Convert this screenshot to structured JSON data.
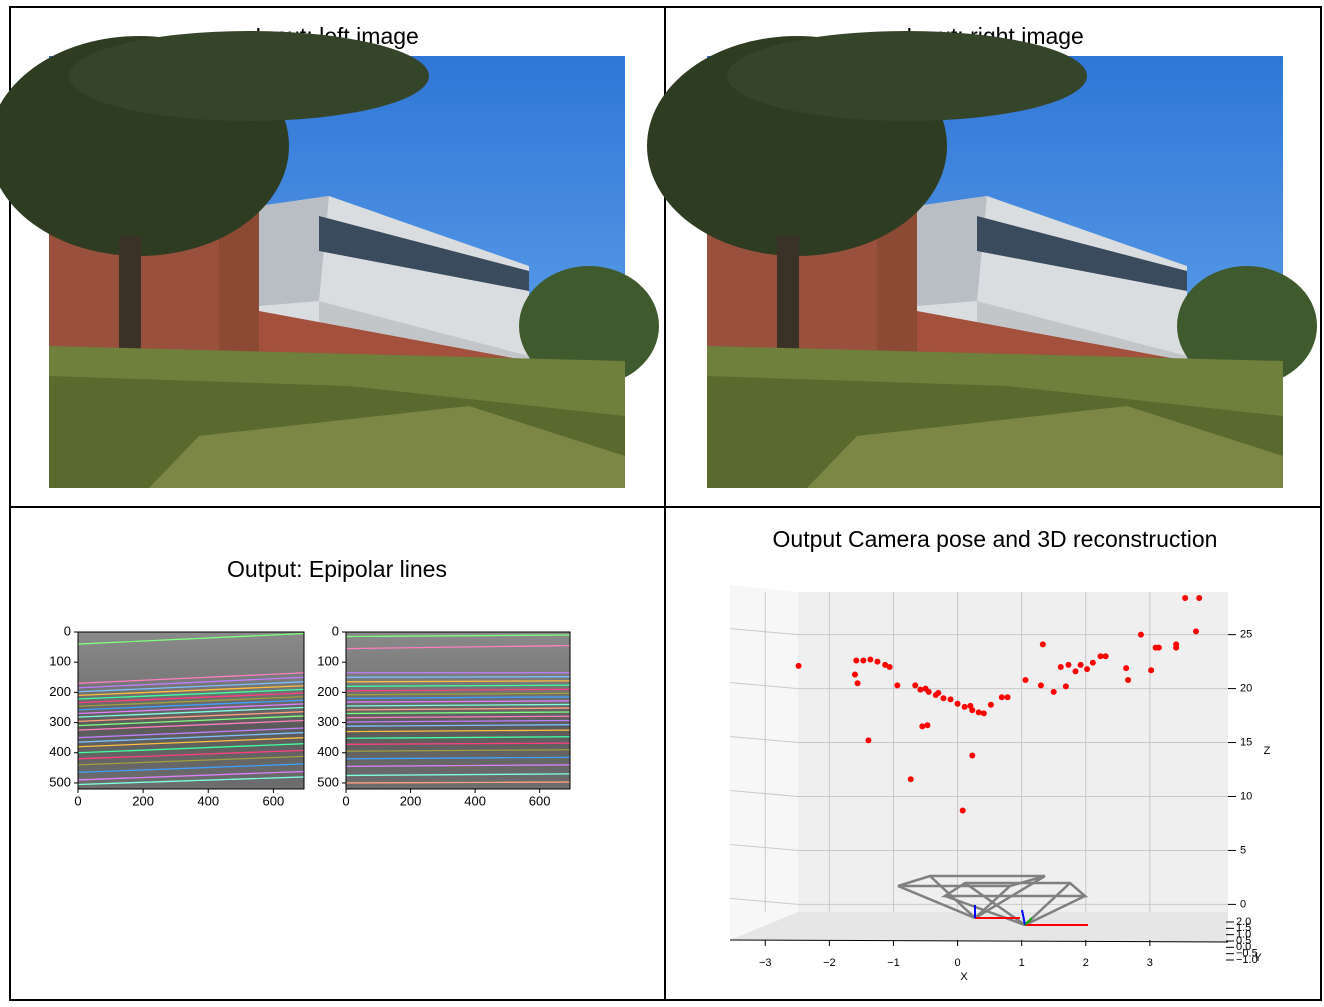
{
  "panels": [
    {
      "title": "Input: left image"
    },
    {
      "title": "Input: right image"
    },
    {
      "title": "Output: Epipolar lines",
      "plots": [
        {
          "type": "line",
          "xlim": [
            0,
            694
          ],
          "ylim": [
            520,
            0
          ],
          "xticks": [
            0,
            200,
            400,
            600
          ],
          "yticks": [
            0,
            100,
            200,
            300,
            400,
            500
          ],
          "colors": [
            "#7fff7f",
            "#ff7fbf",
            "#bf7fff",
            "#7fbfff",
            "#ffbf3f",
            "#3fff9f",
            "#ff3f7f",
            "#9f9f3f",
            "#3f9fff",
            "#df7fff",
            "#7fffdf",
            "#ff9f7f"
          ],
          "y_start": [
            40,
            170,
            185,
            198,
            210,
            222,
            234,
            246,
            258,
            270,
            282,
            296,
            310,
            325,
            350,
            365,
            380,
            400,
            420,
            440,
            465,
            490,
            505
          ],
          "y_end": [
            5,
            135,
            150,
            165,
            178,
            190,
            202,
            214,
            226,
            238,
            250,
            264,
            278,
            293,
            318,
            333,
            350,
            370,
            392,
            412,
            437,
            462,
            480
          ]
        },
        {
          "type": "line",
          "xlim": [
            0,
            694
          ],
          "ylim": [
            520,
            0
          ],
          "xticks": [
            0,
            200,
            400,
            600
          ],
          "yticks": [
            0,
            100,
            200,
            300,
            400,
            500
          ],
          "colors": [
            "#7fff7f",
            "#ff7fbf",
            "#bf7fff",
            "#7fbfff",
            "#ffbf3f",
            "#3fff9f",
            "#ff3f7f",
            "#9f9f3f",
            "#3f9fff",
            "#df7fff",
            "#7fffdf",
            "#ff9f7f"
          ],
          "y_start": [
            15,
            55,
            135,
            150,
            165,
            180,
            195,
            208,
            220,
            232,
            245,
            258,
            270,
            284,
            298,
            312,
            330,
            352,
            372,
            395,
            420,
            445,
            475,
            500
          ],
          "y_end": [
            10,
            45,
            135,
            148,
            162,
            176,
            190,
            203,
            215,
            228,
            240,
            252,
            265,
            279,
            293,
            307,
            325,
            347,
            368,
            390,
            415,
            440,
            470,
            497
          ]
        }
      ]
    },
    {
      "title": "Output Camera pose and 3D reconstruction",
      "chart": {
        "type": "scatter3d",
        "color": "#ff0000",
        "xlim": [
          -3.55,
          4.25
        ],
        "zlim": [
          -3.3,
          29.6
        ],
        "ylim": [
          -1.0,
          2.0
        ],
        "xticks": [
          {
            "value": -3,
            "label": "−3"
          },
          {
            "value": -2,
            "label": "−2"
          },
          {
            "value": -1,
            "label": "−1"
          },
          0,
          1,
          2,
          3
        ],
        "zticks": [
          0,
          5,
          10,
          15,
          20,
          25
        ],
        "yticks": [
          {
            "value": 2.0,
            "label": "2.0"
          },
          {
            "value": 1.5,
            "label": "1.5"
          },
          {
            "value": 1.0,
            "label": "1.0"
          },
          {
            "value": 0.5,
            "label": "0.5"
          },
          {
            "value": 0.0,
            "label": "0.0"
          },
          {
            "value": -0.5,
            "label": "−0.5"
          },
          {
            "value": -1.0,
            "label": "−1.0"
          }
        ],
        "xlabel": "X",
        "ylabel": "Y",
        "zlabel": "Z",
        "x": [
          -2.48,
          -1.58,
          -1.47,
          -1.36,
          -1.25,
          -1.13,
          -1.06,
          -1.6,
          -1.56,
          -0.94,
          -0.66,
          -0.58,
          -0.45,
          -0.34,
          -0.22,
          -0.11,
          0,
          0.11,
          0.23,
          0.33,
          0.41,
          0.52,
          0.69,
          0.78,
          -0.47,
          -0.55,
          -1.39,
          -0.73,
          0.08,
          0.23,
          1.06,
          1.3,
          1.33,
          1.61,
          1.69,
          1.84,
          1.92,
          2.02,
          2.11,
          2.23,
          2.31,
          2.63,
          2.66,
          2.86,
          3.02,
          3.09,
          3.14,
          3.41,
          3.41,
          3.55,
          3.77,
          3.72,
          1.5,
          1.73,
          -0.5,
          -0.3,
          0.2
        ],
        "z": [
          22.1,
          22.6,
          22.6,
          22.7,
          22.5,
          22.2,
          22.0,
          21.3,
          20.5,
          20.3,
          20.3,
          19.9,
          19.7,
          19.4,
          19.1,
          19.0,
          18.6,
          18.3,
          18.0,
          17.8,
          17.7,
          18.5,
          19.2,
          19.2,
          16.6,
          16.5,
          15.2,
          11.6,
          8.7,
          13.8,
          20.8,
          20.3,
          24.1,
          22.0,
          20.2,
          21.6,
          22.2,
          21.8,
          22.4,
          23.0,
          23.0,
          21.9,
          20.8,
          25.0,
          21.7,
          23.8,
          23.8,
          24.1,
          23.8,
          28.4,
          28.4,
          25.3,
          19.7,
          22.2,
          20.0,
          19.6,
          18.4
        ]
      }
    }
  ]
}
